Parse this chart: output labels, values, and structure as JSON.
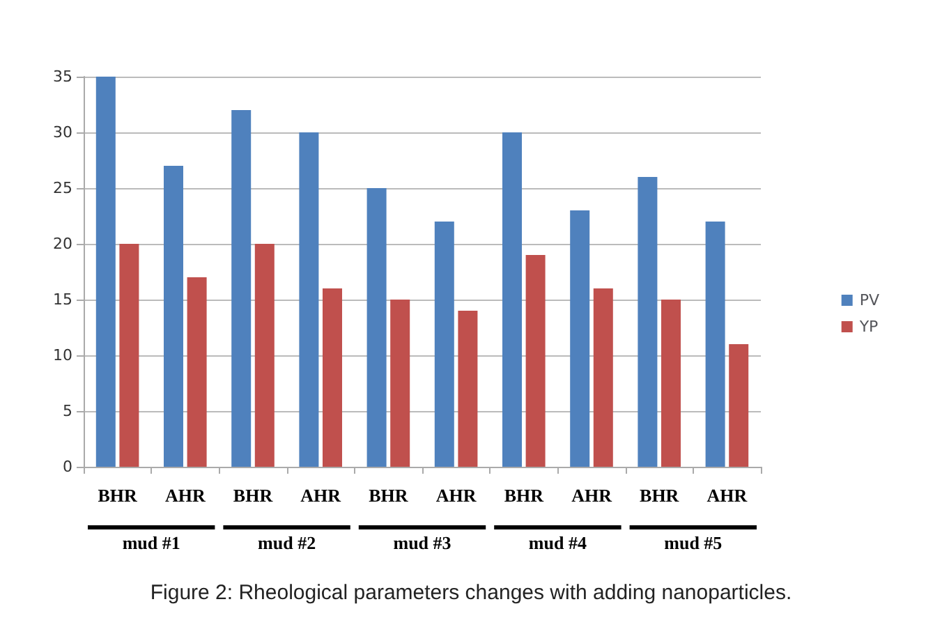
{
  "chart_data": {
    "type": "bar",
    "title": "Figure 2: Rheological parameters changes with adding nanoparticles.",
    "categories": [
      "BHR",
      "AHR",
      "BHR",
      "AHR",
      "BHR",
      "AHR",
      "BHR",
      "AHR",
      "BHR",
      "AHR"
    ],
    "series": [
      {
        "name": "PV",
        "color": "#4f81bd",
        "values": [
          35,
          27,
          32,
          30,
          25,
          22,
          30,
          23,
          26,
          22
        ]
      },
      {
        "name": "YP",
        "color": "#c0504d",
        "values": [
          20,
          17,
          20,
          16,
          15,
          14,
          19,
          16,
          15,
          11
        ]
      }
    ],
    "annotations": [
      "mud #1",
      "mud #2",
      "mud #3",
      "mud #4",
      "mud #5"
    ],
    "ylim": [
      0,
      35
    ],
    "yticks": [
      0,
      5,
      10,
      15,
      20,
      25,
      30,
      35
    ],
    "grid": "y",
    "legend": "right"
  }
}
